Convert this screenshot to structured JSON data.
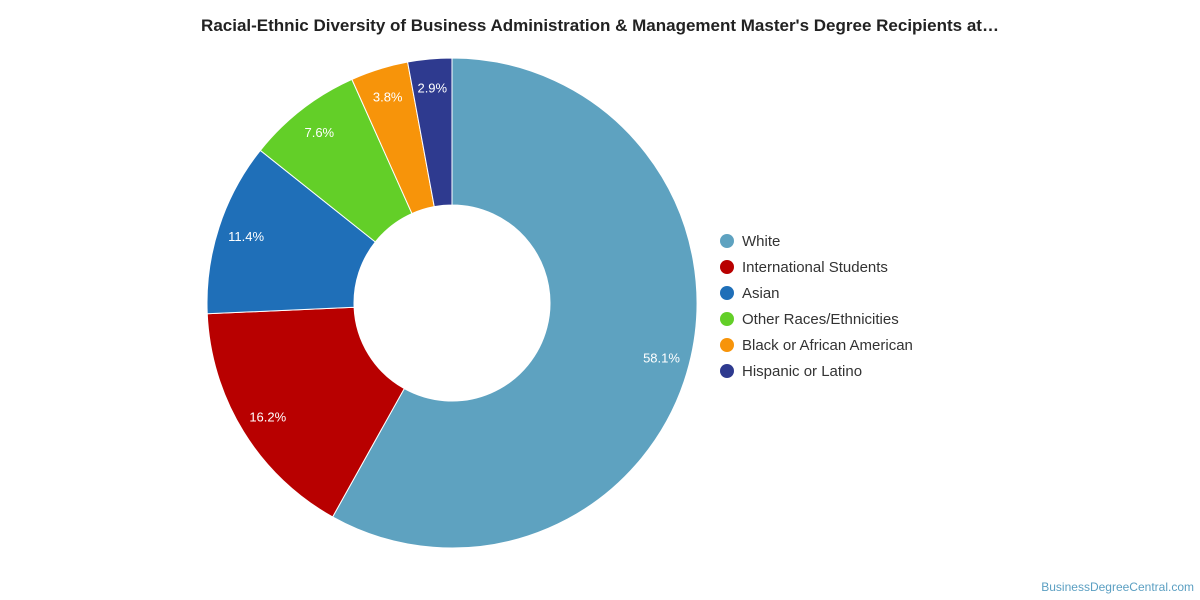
{
  "chart_data": {
    "type": "pie",
    "title": "Racial-Ethnic Diversity of Business Administration & Management Master's Degree Recipients at…",
    "donut": true,
    "legend_position": "right",
    "slices": [
      {
        "label": "White",
        "value": 58.1,
        "value_label": "58.1%",
        "color": "#5ea2c0"
      },
      {
        "label": "International Students",
        "value": 16.2,
        "value_label": "16.2%",
        "color": "#b80000"
      },
      {
        "label": "Asian",
        "value": 11.4,
        "value_label": "11.4%",
        "color": "#1f6fb8"
      },
      {
        "label": "Other Races/Ethnicities",
        "value": 7.6,
        "value_label": "7.6%",
        "color": "#63cf28"
      },
      {
        "label": "Black or African American",
        "value": 3.8,
        "value_label": "3.8%",
        "color": "#f7940a"
      },
      {
        "label": "Hispanic or Latino",
        "value": 2.9,
        "value_label": "2.9%",
        "color": "#2e3a8f"
      }
    ]
  },
  "credit": "BusinessDegreeCentral.com"
}
